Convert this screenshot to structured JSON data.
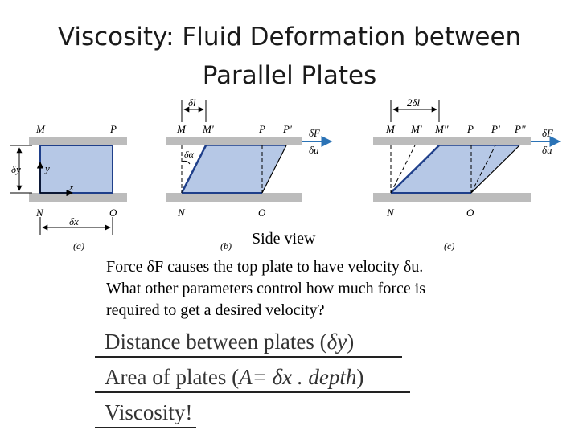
{
  "title": {
    "line1": "Viscosity: Fluid Deformation between",
    "line2": "Parallel Plates"
  },
  "figure": {
    "panel_a": {
      "label_M": "M",
      "label_P": "P",
      "label_N": "N",
      "label_O": "O",
      "label_dy": "δy",
      "label_y": "y",
      "label_x": "x",
      "label_dx": "δx",
      "caption": "(a)"
    },
    "panel_b": {
      "label_dl": "δl",
      "label_M": "M",
      "label_M1": "M'",
      "label_P": "P",
      "label_P1": "P'",
      "label_dalpha": "δα",
      "label_dF": "δF",
      "label_du": "δu",
      "label_N": "N",
      "label_O": "O",
      "caption": "(b)"
    },
    "panel_c": {
      "label_2dl": "2δl",
      "label_M": "M",
      "label_M1": "M'",
      "label_M2": "M''",
      "label_P": "P",
      "label_P1": "P'",
      "label_P2": "P''",
      "label_dF": "δF",
      "label_du": "δu",
      "label_N": "N",
      "label_O": "O",
      "caption": "(c)"
    },
    "colors": {
      "fluid": "#b6c8e6",
      "fluid_edge": "#1f3f8a",
      "plate": "#bcbcbc",
      "arrow": "#2b73b6"
    }
  },
  "caption": "Side view",
  "body": {
    "line1": "Force δF causes the top plate to have velocity δu.",
    "line2": "What other parameters control how much force is",
    "line3": "required to get a desired velocity?"
  },
  "answers": {
    "a1_text": "Distance between plates (",
    "a1_sym": "δy",
    "a1_end": ")",
    "a2_text": "Area of plates (",
    "a2_sym": "A= δx . depth",
    "a2_end": ")",
    "a3_text": "Viscosity",
    "a3_end": "!"
  }
}
